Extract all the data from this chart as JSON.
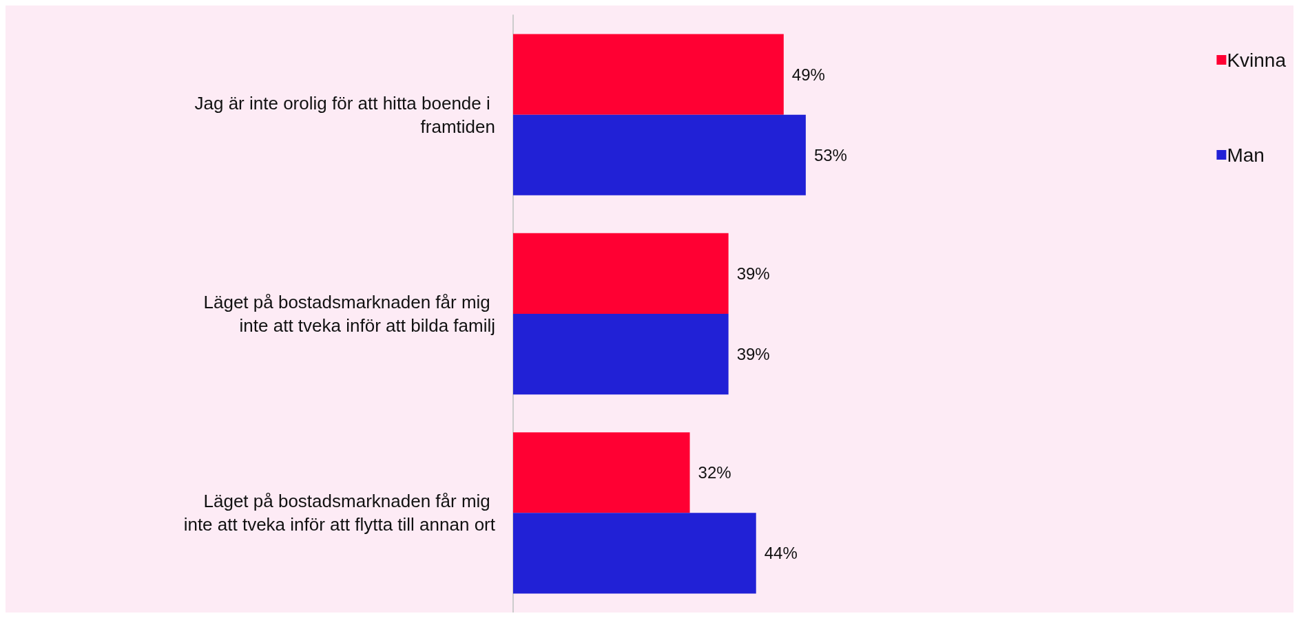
{
  "chart_data": {
    "type": "bar",
    "orientation": "horizontal",
    "categories": [
      "Jag är inte orolig för att hitta boende i framtiden",
      "Läget på bostadsmarknaden får mig inte att tveka inför att bilda familj",
      "Läget på bostadsmarknaden får mig inte att tveka inför att flytta till annan ort"
    ],
    "series": [
      {
        "name": "Kvinna",
        "color": "#ff0033",
        "values": [
          49,
          39,
          32
        ],
        "value_labels": [
          "49%",
          "39%",
          "32%"
        ]
      },
      {
        "name": "Man",
        "color": "#2121d6",
        "values": [
          53,
          39,
          44
        ],
        "value_labels": [
          "53%",
          "39%",
          "44%"
        ]
      }
    ],
    "tick_labels": "y",
    "legend": "top right"
  }
}
